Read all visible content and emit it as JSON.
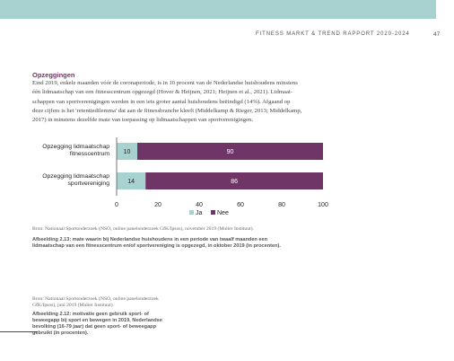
{
  "header": {
    "running_title": "FITNESS MARKT & TREND RAPPORT 2020-2024",
    "page_number": "47"
  },
  "section": {
    "heading": "Opzeggingen",
    "paragraph_lines": [
      "Eind 2019, enkele maanden vóór de coronaperiode, is in 10 procent van de Nederlandse huishoudens minstens",
      "één lidmaatschap van een fitnesscentrum opgezegd (Hover & Heijnen, 2021; Heijnen et al., 2021). Lidmaat-",
      "schappen van sportverenigingen werden in een iets groter aantal huishoudens beëindigd (14%). Afgaand op",
      "deze cijfers is het 'retentiedilemma' dat aan de fitnessbranche kleeft (Middelkamp & Rieger, 2013; Middelkamp,",
      "2017) in minstens dezelfde mate van toepassing op lidmaatschappen van sportverenigingen."
    ]
  },
  "chart_data": {
    "type": "bar",
    "orientation": "horizontal",
    "stacked": true,
    "categories": [
      [
        "Opzegging lidmaatschap",
        "fitnesscentrum"
      ],
      [
        "Opzegging lidmaatschap",
        "sportvereniging"
      ]
    ],
    "series": [
      {
        "name": "Ja",
        "values": [
          10,
          14
        ],
        "color": "#a8d2cf"
      },
      {
        "name": "Nee",
        "values": [
          90,
          86
        ],
        "color": "#6e3566"
      }
    ],
    "xlim": [
      0,
      100
    ],
    "xticks": [
      0,
      20,
      40,
      60,
      80,
      100
    ],
    "grid": false,
    "legend_placement": "bottom-center"
  },
  "figure": {
    "source": "Bron: Nationaal Sportonderzoek (NSO, online panelonderzoek GfK/Ipsos), november 2019 (Mulier Instituut).",
    "caption_lines": [
      "Afbeelding 2.13: mate waarin bij Nederlandse huishoudens in een periode van twaalf maanden een",
      "lidmaatschap van een fitnesscentrum en/of sportvereniging is opgezegd, in oktober 2019 (in procenten)."
    ]
  },
  "side_figure": {
    "source_lines": [
      "Bron: Nationaal Sportonderzoek (NSO, online panelonderzoek",
      "GfK/Ipsos), juni 2019 (Mulier Instituut)."
    ],
    "caption_lines": [
      "Afbeelding 2.12: motivatie geen gebruik sport- of",
      "beweegapp bij sport en bewegen in 2019, Nederlandse",
      "bevolking (16-79 jaar) dat geen sport- of beweegapp",
      "gebruikt (in procenten)."
    ]
  }
}
